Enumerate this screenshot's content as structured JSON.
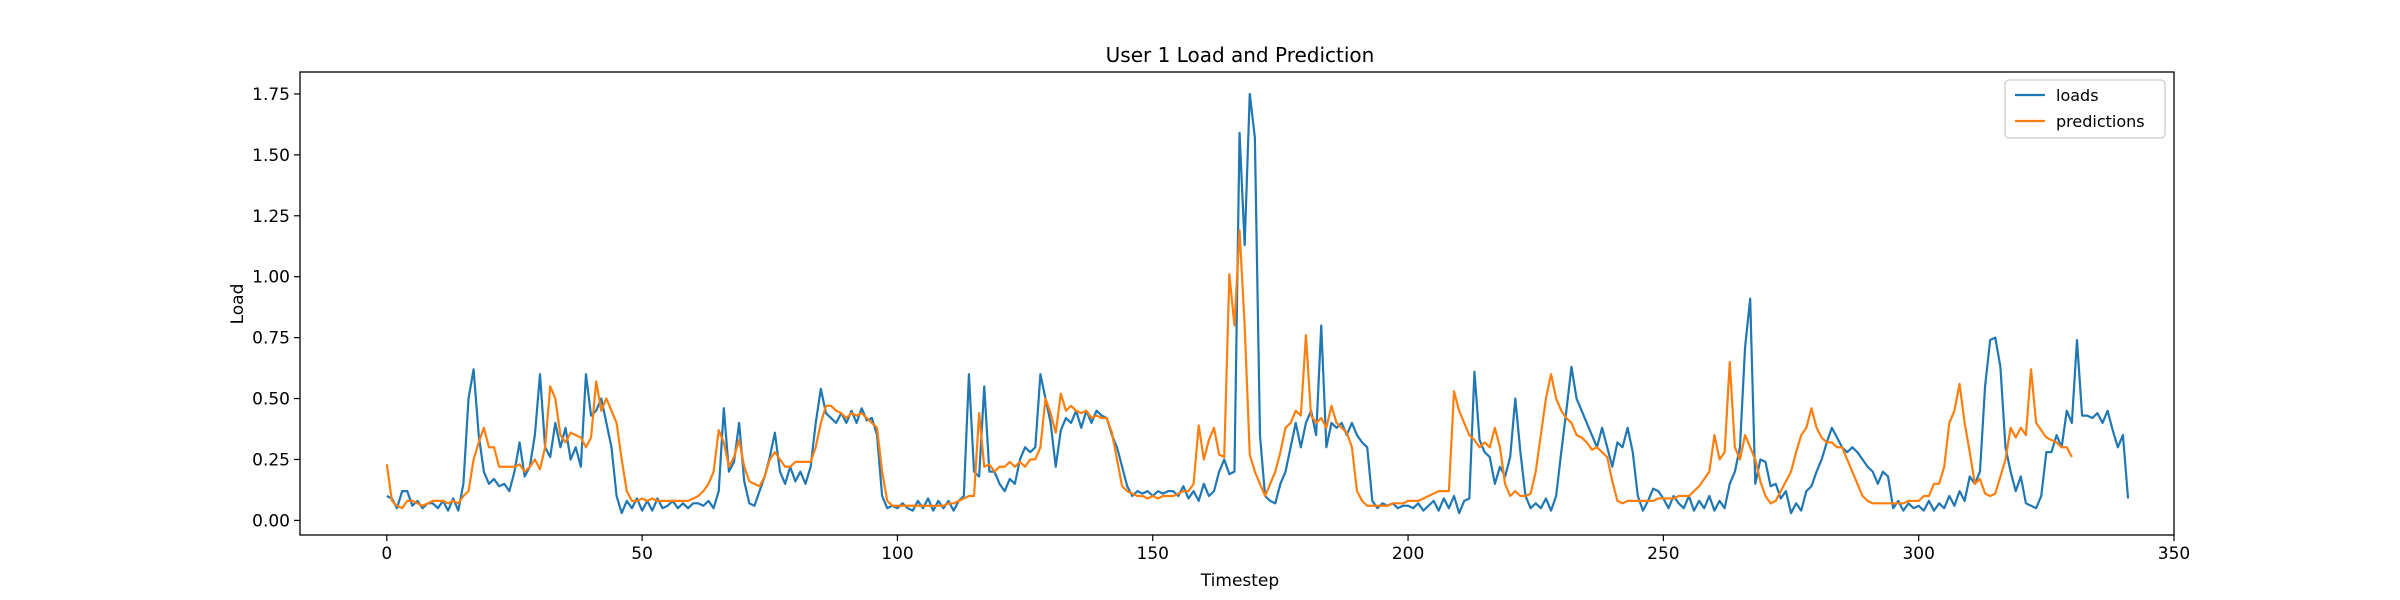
{
  "chart_data": {
    "type": "line",
    "title": "User 1 Load and Prediction",
    "xlabel": "Timestep",
    "ylabel": "Load",
    "xlim": [
      -17,
      350
    ],
    "ylim": [
      -0.06,
      1.84
    ],
    "xticks": [
      0,
      50,
      100,
      150,
      200,
      250,
      300,
      350
    ],
    "yticks": [
      0.0,
      0.25,
      0.5,
      0.75,
      1.0,
      1.25,
      1.5,
      1.75
    ],
    "ytick_labels": [
      "0.00",
      "0.25",
      "0.50",
      "0.75",
      "1.00",
      "1.25",
      "1.50",
      "1.75"
    ],
    "grid": false,
    "legend_position": "top-right",
    "series": [
      {
        "name": "loads",
        "color": "#1f77b4",
        "values": [
          0.1,
          0.09,
          0.05,
          0.12,
          0.12,
          0.06,
          0.08,
          0.05,
          0.07,
          0.07,
          0.05,
          0.08,
          0.04,
          0.09,
          0.04,
          0.15,
          0.5,
          0.62,
          0.35,
          0.2,
          0.15,
          0.17,
          0.14,
          0.15,
          0.12,
          0.2,
          0.32,
          0.18,
          0.22,
          0.35,
          0.6,
          0.3,
          0.26,
          0.4,
          0.3,
          0.38,
          0.25,
          0.3,
          0.22,
          0.6,
          0.43,
          0.45,
          0.5,
          0.4,
          0.3,
          0.1,
          0.03,
          0.08,
          0.05,
          0.09,
          0.04,
          0.08,
          0.04,
          0.09,
          0.05,
          0.06,
          0.08,
          0.05,
          0.07,
          0.05,
          0.07,
          0.07,
          0.06,
          0.08,
          0.05,
          0.12,
          0.46,
          0.2,
          0.24,
          0.4,
          0.16,
          0.07,
          0.06,
          0.12,
          0.18,
          0.26,
          0.36,
          0.2,
          0.15,
          0.22,
          0.16,
          0.2,
          0.15,
          0.22,
          0.4,
          0.54,
          0.44,
          0.42,
          0.4,
          0.44,
          0.4,
          0.45,
          0.4,
          0.46,
          0.41,
          0.42,
          0.35,
          0.1,
          0.05,
          0.06,
          0.05,
          0.07,
          0.05,
          0.04,
          0.08,
          0.05,
          0.09,
          0.04,
          0.08,
          0.05,
          0.08,
          0.04,
          0.08,
          0.1,
          0.6,
          0.2,
          0.18,
          0.55,
          0.2,
          0.2,
          0.15,
          0.12,
          0.17,
          0.15,
          0.25,
          0.3,
          0.28,
          0.3,
          0.6,
          0.5,
          0.4,
          0.22,
          0.37,
          0.42,
          0.4,
          0.45,
          0.38,
          0.45,
          0.4,
          0.45,
          0.43,
          0.42,
          0.35,
          0.3,
          0.22,
          0.14,
          0.1,
          0.12,
          0.11,
          0.12,
          0.1,
          0.12,
          0.11,
          0.12,
          0.12,
          0.1,
          0.14,
          0.09,
          0.12,
          0.08,
          0.15,
          0.1,
          0.12,
          0.2,
          0.25,
          0.19,
          0.2,
          1.59,
          1.13,
          1.75,
          1.57,
          0.35,
          0.1,
          0.08,
          0.07,
          0.15,
          0.2,
          0.3,
          0.4,
          0.3,
          0.4,
          0.45,
          0.35,
          0.8,
          0.3,
          0.4,
          0.38,
          0.4,
          0.35,
          0.4,
          0.35,
          0.32,
          0.3,
          0.08,
          0.05,
          0.07,
          0.06,
          0.07,
          0.05,
          0.06,
          0.06,
          0.05,
          0.07,
          0.04,
          0.06,
          0.08,
          0.04,
          0.09,
          0.05,
          0.1,
          0.03,
          0.08,
          0.09,
          0.61,
          0.33,
          0.28,
          0.26,
          0.15,
          0.22,
          0.18,
          0.26,
          0.5,
          0.28,
          0.1,
          0.05,
          0.07,
          0.05,
          0.09,
          0.04,
          0.1,
          0.28,
          0.45,
          0.63,
          0.5,
          0.45,
          0.4,
          0.35,
          0.3,
          0.38,
          0.3,
          0.22,
          0.32,
          0.3,
          0.38,
          0.28,
          0.1,
          0.04,
          0.08,
          0.13,
          0.12,
          0.09,
          0.05,
          0.1,
          0.07,
          0.05,
          0.1,
          0.04,
          0.08,
          0.05,
          0.1,
          0.04,
          0.08,
          0.05,
          0.15,
          0.2,
          0.3,
          0.71,
          0.91,
          0.15,
          0.25,
          0.24,
          0.14,
          0.15,
          0.09,
          0.12,
          0.03,
          0.07,
          0.04,
          0.12,
          0.14,
          0.2,
          0.25,
          0.32,
          0.38,
          0.34,
          0.3,
          0.28,
          0.3,
          0.28,
          0.25,
          0.22,
          0.2,
          0.15,
          0.2,
          0.18,
          0.05,
          0.08,
          0.04,
          0.07,
          0.05,
          0.06,
          0.04,
          0.08,
          0.04,
          0.07,
          0.05,
          0.1,
          0.06,
          0.12,
          0.08,
          0.18,
          0.15,
          0.2,
          0.55,
          0.74,
          0.75,
          0.63,
          0.3,
          0.2,
          0.12,
          0.18,
          0.07,
          0.06,
          0.05,
          0.1,
          0.28,
          0.28,
          0.35,
          0.3,
          0.45,
          0.4,
          0.74,
          0.43,
          0.43,
          0.42,
          0.44,
          0.4,
          0.45,
          0.37,
          0.3,
          0.35,
          0.09
        ]
      },
      {
        "name": "predictions",
        "color": "#ff7f0e",
        "values": [
          0.23,
          0.08,
          0.06,
          0.05,
          0.08,
          0.08,
          0.07,
          0.06,
          0.07,
          0.08,
          0.08,
          0.08,
          0.07,
          0.08,
          0.07,
          0.1,
          0.12,
          0.25,
          0.32,
          0.38,
          0.3,
          0.3,
          0.22,
          0.22,
          0.22,
          0.22,
          0.23,
          0.2,
          0.22,
          0.25,
          0.21,
          0.3,
          0.55,
          0.5,
          0.35,
          0.32,
          0.36,
          0.35,
          0.34,
          0.3,
          0.34,
          0.57,
          0.45,
          0.5,
          0.45,
          0.4,
          0.25,
          0.12,
          0.08,
          0.08,
          0.09,
          0.08,
          0.09,
          0.08,
          0.08,
          0.08,
          0.08,
          0.08,
          0.08,
          0.08,
          0.09,
          0.1,
          0.12,
          0.15,
          0.2,
          0.37,
          0.32,
          0.22,
          0.26,
          0.33,
          0.22,
          0.16,
          0.15,
          0.14,
          0.18,
          0.25,
          0.28,
          0.25,
          0.22,
          0.22,
          0.24,
          0.24,
          0.24,
          0.24,
          0.3,
          0.4,
          0.47,
          0.47,
          0.45,
          0.44,
          0.42,
          0.44,
          0.43,
          0.44,
          0.42,
          0.4,
          0.38,
          0.2,
          0.08,
          0.06,
          0.06,
          0.06,
          0.06,
          0.06,
          0.06,
          0.06,
          0.06,
          0.06,
          0.06,
          0.06,
          0.07,
          0.07,
          0.08,
          0.09,
          0.1,
          0.1,
          0.44,
          0.22,
          0.23,
          0.2,
          0.22,
          0.22,
          0.24,
          0.22,
          0.24,
          0.22,
          0.25,
          0.25,
          0.3,
          0.5,
          0.44,
          0.36,
          0.52,
          0.45,
          0.47,
          0.45,
          0.44,
          0.45,
          0.42,
          0.43,
          0.42,
          0.42,
          0.36,
          0.25,
          0.14,
          0.12,
          0.11,
          0.1,
          0.1,
          0.09,
          0.1,
          0.09,
          0.1,
          0.1,
          0.1,
          0.11,
          0.12,
          0.12,
          0.15,
          0.39,
          0.25,
          0.33,
          0.38,
          0.27,
          0.26,
          1.01,
          0.8,
          1.19,
          0.8,
          0.27,
          0.2,
          0.15,
          0.1,
          0.15,
          0.2,
          0.28,
          0.38,
          0.4,
          0.45,
          0.43,
          0.76,
          0.43,
          0.4,
          0.42,
          0.38,
          0.47,
          0.4,
          0.38,
          0.36,
          0.3,
          0.12,
          0.08,
          0.06,
          0.06,
          0.06,
          0.06,
          0.06,
          0.07,
          0.07,
          0.07,
          0.08,
          0.08,
          0.08,
          0.09,
          0.1,
          0.11,
          0.12,
          0.12,
          0.12,
          0.53,
          0.45,
          0.4,
          0.35,
          0.33,
          0.3,
          0.32,
          0.3,
          0.38,
          0.3,
          0.15,
          0.1,
          0.12,
          0.1,
          0.1,
          0.11,
          0.2,
          0.35,
          0.5,
          0.6,
          0.5,
          0.45,
          0.42,
          0.4,
          0.35,
          0.34,
          0.32,
          0.29,
          0.3,
          0.28,
          0.26,
          0.16,
          0.08,
          0.07,
          0.08,
          0.08,
          0.08,
          0.08,
          0.08,
          0.08,
          0.09,
          0.09,
          0.09,
          0.09,
          0.1,
          0.1,
          0.1,
          0.12,
          0.14,
          0.17,
          0.2,
          0.35,
          0.25,
          0.28,
          0.65,
          0.3,
          0.25,
          0.35,
          0.3,
          0.25,
          0.16,
          0.1,
          0.07,
          0.08,
          0.12,
          0.16,
          0.2,
          0.28,
          0.35,
          0.38,
          0.46,
          0.38,
          0.34,
          0.32,
          0.32,
          0.3,
          0.3,
          0.25,
          0.2,
          0.15,
          0.1,
          0.08,
          0.07,
          0.07,
          0.07,
          0.07,
          0.07,
          0.07,
          0.07,
          0.08,
          0.08,
          0.08,
          0.1,
          0.1,
          0.15,
          0.15,
          0.22,
          0.4,
          0.45,
          0.56,
          0.4,
          0.28,
          0.15,
          0.17,
          0.11,
          0.1,
          0.11,
          0.18,
          0.25,
          0.38,
          0.34,
          0.38,
          0.35,
          0.62,
          0.4,
          0.37,
          0.34,
          0.33,
          0.32,
          0.3,
          0.3,
          0.26
        ]
      }
    ]
  }
}
